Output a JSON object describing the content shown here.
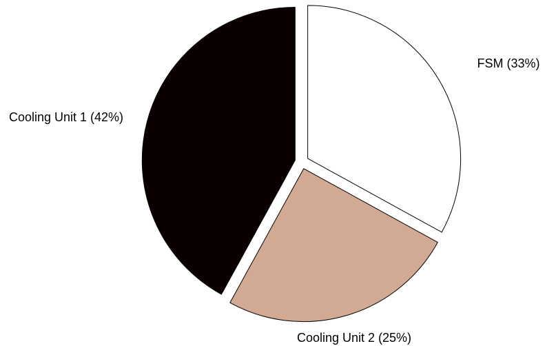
{
  "chart_data": {
    "type": "pie",
    "title": "",
    "exploded": true,
    "slices": [
      {
        "label": "FSM (33%)",
        "value": 33,
        "color": "#ffffff"
      },
      {
        "label": "Cooling Unit 2 (25%)",
        "value": 25,
        "color": "#d2aa94"
      },
      {
        "label": "Cooling Unit 1 (42%)",
        "value": 42,
        "color": "#0a0000"
      }
    ]
  }
}
